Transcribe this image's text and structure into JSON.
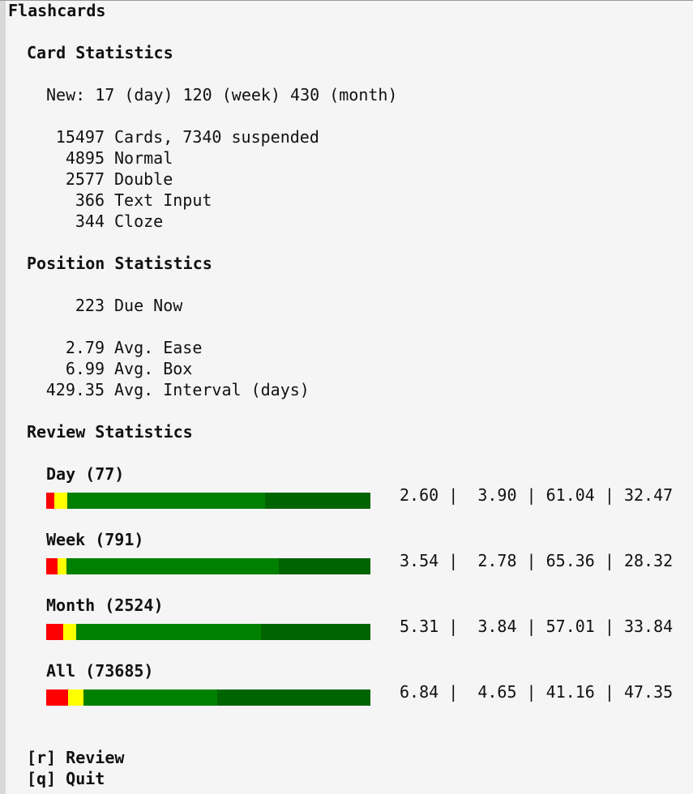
{
  "title": "Flashcards",
  "card_statistics": {
    "heading": "Card Statistics",
    "new_line": "New: 17 (day) 120 (week) 430 (month)",
    "rows": [
      {
        "value": "15497",
        "label": "Cards, 7340 suspended"
      },
      {
        "value": "4895",
        "label": "Normal"
      },
      {
        "value": "2577",
        "label": "Double"
      },
      {
        "value": "366",
        "label": "Text Input"
      },
      {
        "value": "344",
        "label": "Cloze"
      }
    ]
  },
  "position_statistics": {
    "heading": "Position Statistics",
    "due": {
      "value": "223",
      "label": "Due Now"
    },
    "rows": [
      {
        "value": "2.79",
        "label": "Avg. Ease"
      },
      {
        "value": "6.99",
        "label": "Avg. Box"
      },
      {
        "value": "429.35",
        "label": "Avg. Interval (days)"
      }
    ]
  },
  "review_statistics": {
    "heading": "Review Statistics",
    "colors": {
      "again": "#ff0000",
      "hard": "#ffff00",
      "good": "#008000",
      "easy": "#006400"
    },
    "periods": [
      {
        "label": "Day (77)",
        "stats": "2.60 |  3.90 | 61.04 | 32.47",
        "segments": [
          2.6,
          3.9,
          61.04,
          32.47
        ]
      },
      {
        "label": "Week (791)",
        "stats": "3.54 |  2.78 | 65.36 | 28.32",
        "segments": [
          3.54,
          2.78,
          65.36,
          28.32
        ]
      },
      {
        "label": "Month (2524)",
        "stats": "5.31 |  3.84 | 57.01 | 33.84",
        "segments": [
          5.31,
          3.84,
          57.01,
          33.84
        ]
      },
      {
        "label": "All (73685)",
        "stats": "6.84 |  4.65 | 41.16 | 47.35",
        "segments": [
          6.84,
          4.65,
          41.16,
          47.35
        ]
      }
    ]
  },
  "actions": [
    {
      "key": "[r]",
      "label": "Review"
    },
    {
      "key": "[q]",
      "label": "Quit"
    }
  ]
}
